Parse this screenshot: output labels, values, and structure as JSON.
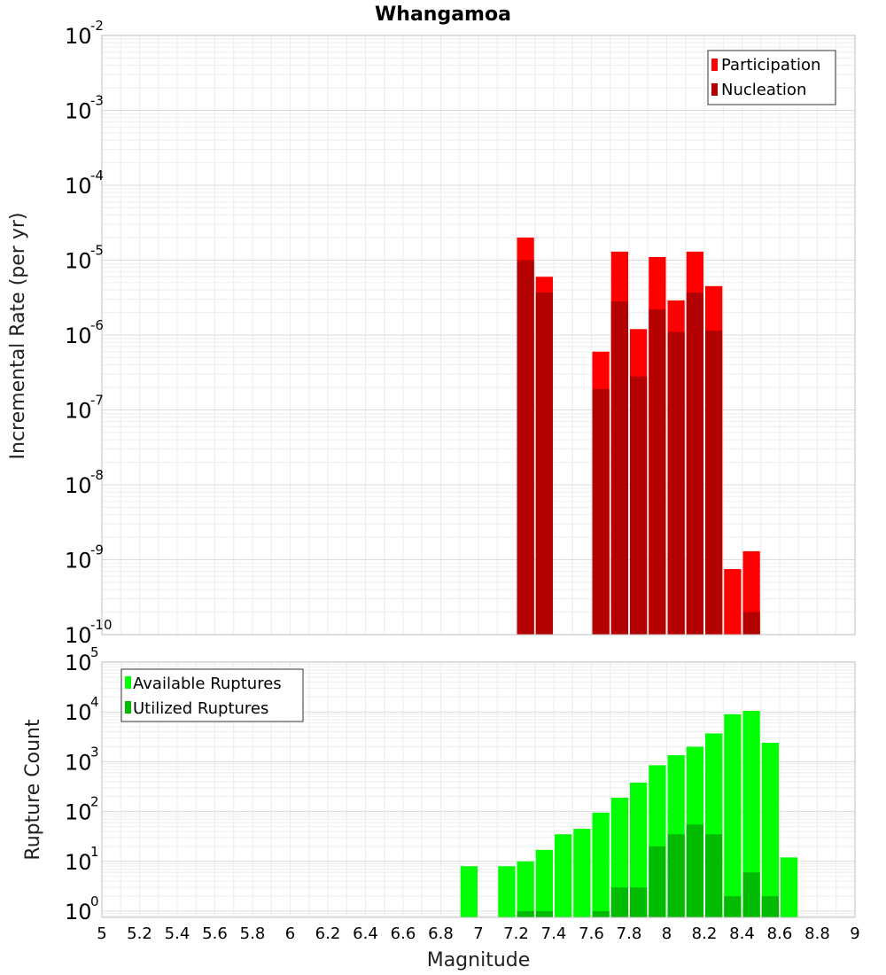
{
  "chart_data": {
    "title": "Whangamoa",
    "xlabel": "Magnitude",
    "xlim": [
      5,
      9
    ],
    "x_ticks": [
      "5",
      "5.2",
      "5.4",
      "5.6",
      "5.8",
      "6",
      "6.2",
      "6.4",
      "6.6",
      "6.8",
      "7",
      "7.2",
      "7.4",
      "7.6",
      "7.8",
      "8",
      "8.2",
      "8.4",
      "8.6",
      "8.8",
      "9"
    ],
    "bin_width": 0.1,
    "panels": [
      {
        "type": "bar",
        "name": "rate",
        "ylabel": "Incremental Rate (per yr)",
        "yscale": "log",
        "ylim": [
          1e-10,
          0.01
        ],
        "y_tick_exponents": [
          "-10",
          "-9",
          "-8",
          "-7",
          "-6",
          "-5",
          "-4",
          "-3",
          "-2"
        ],
        "legend_position": "top-right",
        "overlay": true,
        "series": [
          {
            "name": "Participation",
            "color": "#ff0000",
            "x": [
              7.25,
              7.35,
              7.65,
              7.75,
              7.85,
              7.95,
              8.05,
              8.15,
              8.25,
              8.35,
              8.45
            ],
            "values": [
              2e-05,
              6e-06,
              6e-07,
              1.3e-05,
              1.2e-06,
              1.1e-05,
              2.9e-06,
              1.3e-05,
              4.5e-06,
              7.5e-10,
              1.3e-09
            ]
          },
          {
            "name": "Nucleation",
            "color": "#b30000",
            "x": [
              7.25,
              7.35,
              7.65,
              7.75,
              7.85,
              7.95,
              8.05,
              8.15,
              8.25,
              8.45
            ],
            "values": [
              1e-05,
              3.7e-06,
              1.9e-07,
              2.8e-06,
              2.8e-07,
              2.2e-06,
              1.1e-06,
              3.7e-06,
              1.15e-06,
              2e-10
            ]
          }
        ]
      },
      {
        "type": "bar",
        "name": "count",
        "ylabel": "Rupture Count",
        "yscale": "log",
        "ylim": [
          0.75,
          100000.0
        ],
        "y_tick_exponents": [
          "0",
          "1",
          "2",
          "3",
          "4",
          "5"
        ],
        "legend_position": "top-left",
        "overlay": true,
        "series": [
          {
            "name": "Available Ruptures",
            "color": "#00ff00",
            "x": [
              6.95,
              7.15,
              7.25,
              7.35,
              7.45,
              7.55,
              7.65,
              7.75,
              7.85,
              7.95,
              8.05,
              8.15,
              8.25,
              8.35,
              8.45,
              8.55,
              8.65
            ],
            "values": [
              8,
              8,
              10,
              17,
              35,
              45,
              95,
              190,
              380,
              850,
              1350,
              2000,
              3700,
              9000,
              10500,
              2400,
              12
            ]
          },
          {
            "name": "Utilized Ruptures",
            "color": "#00bb00",
            "x": [
              7.25,
              7.35,
              7.65,
              7.75,
              7.85,
              7.95,
              8.05,
              8.15,
              8.25,
              8.35,
              8.45,
              8.55
            ],
            "values": [
              1,
              1,
              1,
              3,
              3,
              20,
              35,
              55,
              35,
              2,
              6,
              2
            ]
          }
        ]
      }
    ]
  }
}
